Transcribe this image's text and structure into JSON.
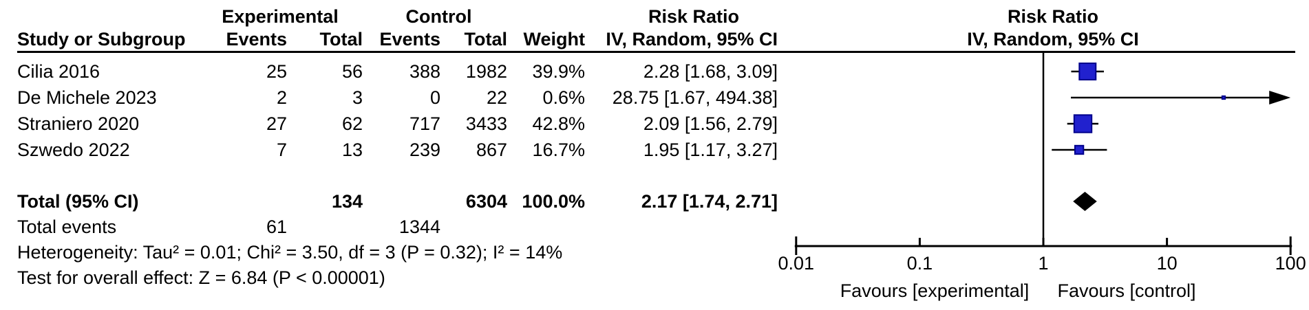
{
  "table": {
    "group_headers": {
      "experimental": "Experimental",
      "control": "Control",
      "risk_ratio_left": "Risk Ratio",
      "risk_ratio_right": "Risk Ratio"
    },
    "col_headers": {
      "study": "Study or Subgroup",
      "events_exp": "Events",
      "total_exp": "Total",
      "events_ctrl": "Events",
      "total_ctrl": "Total",
      "weight": "Weight",
      "ci_method_left": "IV, Random, 95% CI",
      "ci_method_right": "IV, Random, 95% CI"
    },
    "rows": [
      {
        "study": "Cilia 2016",
        "events_exp": "25",
        "total_exp": "56",
        "events_ctrl": "388",
        "total_ctrl": "1982",
        "weight": "39.9%",
        "rr_ci": "2.28 [1.68, 3.09]"
      },
      {
        "study": "De Michele 2023",
        "events_exp": "2",
        "total_exp": "3",
        "events_ctrl": "0",
        "total_ctrl": "22",
        "weight": "0.6%",
        "rr_ci": "28.75 [1.67, 494.38]"
      },
      {
        "study": "Straniero 2020",
        "events_exp": "27",
        "total_exp": "62",
        "events_ctrl": "717",
        "total_ctrl": "3433",
        "weight": "42.8%",
        "rr_ci": "2.09 [1.56, 2.79]"
      },
      {
        "study": "Szwedo 2022",
        "events_exp": "7",
        "total_exp": "13",
        "events_ctrl": "239",
        "total_ctrl": "867",
        "weight": "16.7%",
        "rr_ci": "1.95 [1.17, 3.27]"
      }
    ],
    "total_row": {
      "label": "Total (95% CI)",
      "total_exp": "134",
      "total_ctrl": "6304",
      "weight": "100.0%",
      "rr_ci": "2.17 [1.74, 2.71]"
    },
    "total_events_row": {
      "label": "Total events",
      "events_exp": "61",
      "events_ctrl": "1344"
    },
    "heterogeneity": "Heterogeneity: Tau² = 0.01; Chi² = 3.50, df = 3 (P = 0.32); I² = 14%",
    "overall_effect": "Test for overall effect: Z = 6.84 (P < 0.00001)"
  },
  "colors": {
    "square_fill": "#2121CE",
    "square_border": "#00008B",
    "diamond": "#000000",
    "line": "#000000",
    "text": "#000000"
  },
  "chart_data": {
    "type": "scatter",
    "subtype": "forest-plot",
    "title": "Risk Ratio",
    "effect_measure": "Risk Ratio",
    "model": "IV, Random, 95% CI",
    "x_scale": "log10",
    "xlim": [
      0.01,
      100
    ],
    "x_ticks": [
      0.01,
      0.1,
      1,
      10,
      100
    ],
    "no_effect_line": 1,
    "axis_labels": {
      "left": "Favours [experimental]",
      "right": "Favours [control]"
    },
    "studies": [
      {
        "name": "Cilia 2016",
        "events_exp": 25,
        "total_exp": 56,
        "events_ctrl": 388,
        "total_ctrl": 1982,
        "weight_pct": 39.9,
        "rr": 2.28,
        "ci_low": 1.68,
        "ci_high": 3.09,
        "ci_exceeds_axis": false
      },
      {
        "name": "De Michele 2023",
        "events_exp": 2,
        "total_exp": 3,
        "events_ctrl": 0,
        "total_ctrl": 22,
        "weight_pct": 0.6,
        "rr": 28.75,
        "ci_low": 1.67,
        "ci_high": 494.38,
        "ci_exceeds_axis": true
      },
      {
        "name": "Straniero 2020",
        "events_exp": 27,
        "total_exp": 62,
        "events_ctrl": 717,
        "total_ctrl": 3433,
        "weight_pct": 42.8,
        "rr": 2.09,
        "ci_low": 1.56,
        "ci_high": 2.79,
        "ci_exceeds_axis": false
      },
      {
        "name": "Szwedo 2022",
        "events_exp": 7,
        "total_exp": 13,
        "events_ctrl": 239,
        "total_ctrl": 867,
        "weight_pct": 16.7,
        "rr": 1.95,
        "ci_low": 1.17,
        "ci_high": 3.27,
        "ci_exceeds_axis": false
      }
    ],
    "total": {
      "name": "Total (95% CI)",
      "total_exp": 134,
      "total_ctrl": 6304,
      "weight_pct": 100.0,
      "rr": 2.17,
      "ci_low": 1.74,
      "ci_high": 2.71
    },
    "total_events": {
      "experimental": 61,
      "control": 1344
    },
    "heterogeneity": {
      "tau2": 0.01,
      "chi2": 3.5,
      "df": 3,
      "p": 0.32,
      "i2_pct": 14
    },
    "overall_effect": {
      "z": 6.84,
      "p": "< 0.00001"
    }
  }
}
